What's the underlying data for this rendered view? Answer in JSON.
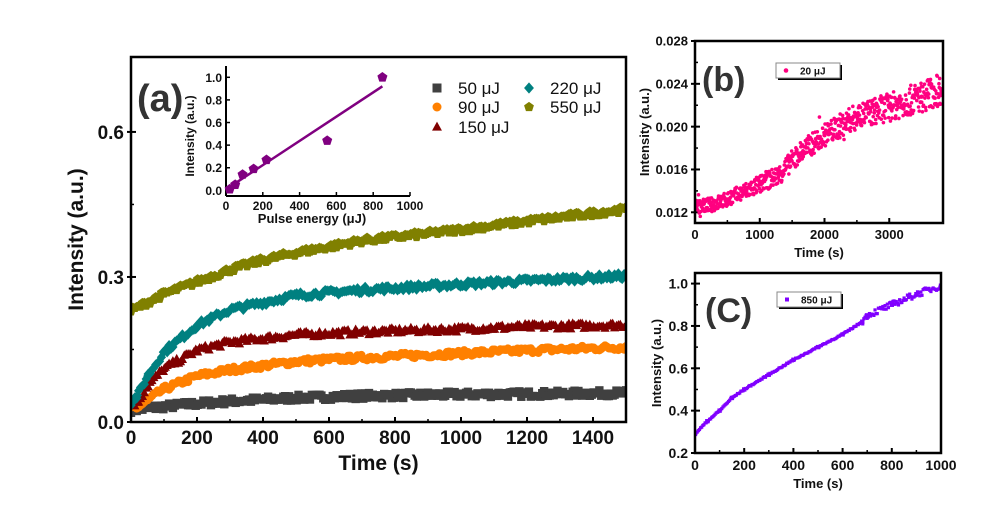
{
  "chart_data": [
    {
      "id": "a",
      "type": "scatter",
      "panel_label": "(a)",
      "xlabel": "Time (s)",
      "ylabel": "Intensity (a.u.)",
      "xlim": [
        0,
        1500
      ],
      "ylim": [
        0,
        0.755
      ],
      "xticks": [
        0,
        200,
        400,
        600,
        800,
        1000,
        1200,
        1400
      ],
      "yticks": [
        0.0,
        0.3,
        0.6
      ],
      "ytick_labels": [
        "0.0",
        "0.3",
        "0.6"
      ],
      "legend": "top-right",
      "series": [
        {
          "name": "50 μJ",
          "color": "#404040",
          "marker": "square",
          "x": [
            0,
            100,
            200,
            300,
            500,
            700,
            1000,
            1200,
            1500
          ],
          "y": [
            0.025,
            0.032,
            0.038,
            0.043,
            0.05,
            0.054,
            0.057,
            0.058,
            0.06
          ]
        },
        {
          "name": "90 μJ",
          "color": "#ff8000",
          "marker": "circle",
          "x": [
            0,
            20,
            50,
            100,
            200,
            300,
            500,
            700,
            1000,
            1200,
            1500
          ],
          "y": [
            0.03,
            0.03,
            0.045,
            0.068,
            0.095,
            0.108,
            0.125,
            0.133,
            0.142,
            0.148,
            0.155
          ]
        },
        {
          "name": "150 μJ",
          "color": "#800000",
          "marker": "triangle",
          "x": [
            0,
            20,
            50,
            100,
            200,
            300,
            500,
            700,
            1000,
            1200,
            1500
          ],
          "y": [
            0.035,
            0.04,
            0.075,
            0.11,
            0.148,
            0.165,
            0.18,
            0.186,
            0.192,
            0.197,
            0.2
          ]
        },
        {
          "name": "220 μJ",
          "color": "#008080",
          "marker": "diamond",
          "x": [
            0,
            20,
            50,
            100,
            200,
            300,
            500,
            700,
            1000,
            1200,
            1500
          ],
          "y": [
            0.04,
            0.055,
            0.095,
            0.145,
            0.2,
            0.232,
            0.262,
            0.273,
            0.285,
            0.292,
            0.302
          ]
        },
        {
          "name": "550 μJ",
          "color": "#808000",
          "marker": "pentagon",
          "x": [
            0,
            100,
            200,
            300,
            400,
            500,
            700,
            900,
            1000,
            1200,
            1500
          ],
          "y": [
            0.23,
            0.265,
            0.29,
            0.315,
            0.335,
            0.35,
            0.375,
            0.39,
            0.398,
            0.415,
            0.44
          ]
        }
      ],
      "inset": {
        "type": "scatter",
        "xlabel": "Pulse energy (μJ)",
        "ylabel": "Intensity (a.u.)",
        "xlim": [
          0,
          1000
        ],
        "ylim": [
          -0.05,
          1.1
        ],
        "xticks": [
          0,
          200,
          400,
          600,
          800,
          1000
        ],
        "yticks": [
          0.0,
          0.2,
          0.4,
          0.6,
          0.8,
          1.0
        ],
        "ytick_labels": [
          "0.0",
          "0.2",
          "0.4",
          "0.6",
          "0.8",
          "1.0"
        ],
        "color": "#800080",
        "points": {
          "x": [
            20,
            50,
            90,
            150,
            220,
            550,
            850
          ],
          "y": [
            0.01,
            0.05,
            0.14,
            0.19,
            0.27,
            0.44,
            1.0
          ]
        },
        "fit_line": {
          "x": [
            20,
            850
          ],
          "y": [
            0.03,
            0.92
          ]
        }
      }
    },
    {
      "id": "b",
      "type": "scatter",
      "panel_label": "(b)",
      "xlabel": "Time (s)",
      "ylabel": "Intensity (a.u.)",
      "xlim": [
        0,
        3830
      ],
      "ylim": [
        0.011,
        0.028
      ],
      "xticks": [
        0,
        1000,
        2000,
        3000
      ],
      "yticks": [
        0.012,
        0.016,
        0.02,
        0.024,
        0.028
      ],
      "ytick_labels": [
        "0.012",
        "0.016",
        "0.020",
        "0.024",
        "0.028"
      ],
      "legend": "top-center",
      "series": [
        {
          "name": "20 μJ",
          "color": "#ff0080",
          "marker": "circle",
          "x": [
            0,
            250,
            500,
            750,
            1000,
            1300,
            1600,
            2000,
            2500,
            3000,
            3500,
            3800
          ],
          "y": [
            0.0125,
            0.0127,
            0.0132,
            0.0139,
            0.0146,
            0.0155,
            0.0175,
            0.0192,
            0.021,
            0.0218,
            0.0228,
            0.0235
          ]
        }
      ]
    },
    {
      "id": "c",
      "type": "scatter",
      "panel_label": "(C)",
      "xlabel": "Time (s)",
      "ylabel": "Intensity (a.u.)",
      "xlim": [
        0,
        1000
      ],
      "ylim": [
        0.2,
        1.05
      ],
      "xticks": [
        0,
        200,
        400,
        600,
        800,
        1000
      ],
      "yticks": [
        0.2,
        0.4,
        0.6,
        0.8,
        1.0
      ],
      "ytick_labels": [
        "0.2",
        "0.4",
        "0.6",
        "0.8",
        "1.0"
      ],
      "legend": "top-center",
      "series": [
        {
          "name": "850 μJ",
          "color": "#8000ff",
          "marker": "square",
          "x": [
            0,
            50,
            100,
            150,
            200,
            300,
            400,
            500,
            600,
            680,
            700,
            800,
            900,
            1000
          ],
          "y": [
            0.29,
            0.35,
            0.4,
            0.46,
            0.5,
            0.57,
            0.64,
            0.7,
            0.76,
            0.82,
            0.85,
            0.9,
            0.95,
            0.99
          ]
        }
      ]
    }
  ]
}
